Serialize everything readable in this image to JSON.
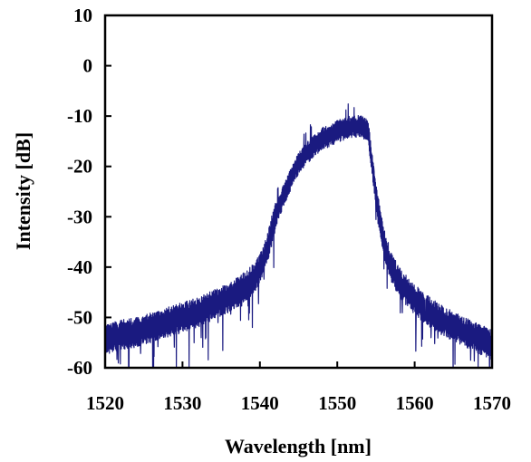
{
  "chart_data": {
    "type": "line",
    "title": "",
    "xlabel": "Wavelength [nm]",
    "ylabel": "Intensity [dB]",
    "xlim": [
      1520,
      1570
    ],
    "ylim": [
      -60,
      10
    ],
    "xticks": [
      1520,
      1530,
      1540,
      1550,
      1560,
      1570
    ],
    "yticks": [
      10,
      0,
      -10,
      -20,
      -30,
      -40,
      -50,
      -60
    ],
    "grid": false,
    "legend": "none",
    "colors": {
      "line": "#1a1a80",
      "axes": "#000000"
    },
    "series": [
      {
        "x": [
          1520,
          1522,
          1524,
          1526,
          1528,
          1530,
          1532,
          1534,
          1536,
          1538,
          1539,
          1540,
          1541,
          1542,
          1543,
          1544,
          1545,
          1546,
          1547,
          1548,
          1549,
          1550,
          1551,
          1552,
          1553,
          1554,
          1555,
          1556,
          1557,
          1558,
          1560,
          1562,
          1564,
          1566,
          1568,
          1570
        ],
        "y": [
          -54.5,
          -53.5,
          -53,
          -52,
          -51,
          -50,
          -49,
          -47.5,
          -46,
          -44,
          -42.5,
          -40.5,
          -36,
          -30,
          -26,
          -22.5,
          -19.5,
          -17.5,
          -16,
          -14.5,
          -14,
          -13,
          -12.5,
          -12,
          -12,
          -13,
          -26,
          -35,
          -40,
          -43,
          -46.5,
          -49,
          -51,
          -52.5,
          -54,
          -55.5
        ]
      }
    ]
  }
}
